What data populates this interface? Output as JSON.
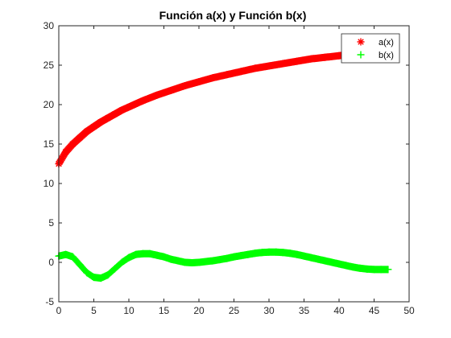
{
  "chart_data": {
    "type": "scatter",
    "title": "Función a(x) y Función b(x)",
    "xlabel": "",
    "ylabel": "",
    "xlim": [
      0,
      50
    ],
    "ylim": [
      -5,
      30
    ],
    "xticks": [
      0,
      5,
      10,
      15,
      20,
      25,
      30,
      35,
      40,
      45,
      50
    ],
    "yticks": [
      -5,
      0,
      5,
      10,
      15,
      20,
      25,
      30
    ],
    "grid": false,
    "legend": "top-right",
    "series": [
      {
        "name": "a(x)",
        "marker": "*",
        "color": "#ff0000",
        "x": [
          0,
          1,
          2,
          3,
          4,
          5,
          6,
          7,
          8,
          9,
          10,
          12,
          14,
          16,
          18,
          20,
          22,
          24,
          26,
          28,
          30,
          32,
          34,
          36,
          38,
          40,
          42
        ],
        "y": [
          12.5,
          14.0,
          15.0,
          15.8,
          16.6,
          17.2,
          17.8,
          18.3,
          18.8,
          19.3,
          19.7,
          20.5,
          21.2,
          21.8,
          22.4,
          22.9,
          23.4,
          23.8,
          24.2,
          24.6,
          24.9,
          25.2,
          25.5,
          25.8,
          26.0,
          26.2,
          26.4
        ]
      },
      {
        "name": "b(x)",
        "marker": "+",
        "color": "#00ff00",
        "x": [
          0,
          1,
          2,
          3,
          4,
          5,
          6,
          7,
          8,
          9,
          10,
          11,
          12,
          13,
          14,
          15,
          16,
          17,
          18,
          19,
          20,
          21,
          22,
          23,
          24,
          25,
          26,
          27,
          28,
          29,
          30,
          31,
          32,
          33,
          34,
          35,
          36,
          37,
          38,
          39,
          40,
          41,
          42,
          43,
          44,
          45,
          46,
          47
        ],
        "y": [
          0.8,
          1.0,
          0.7,
          -0.3,
          -1.3,
          -1.9,
          -2.0,
          -1.6,
          -0.8,
          0.0,
          0.6,
          1.0,
          1.1,
          1.1,
          0.9,
          0.7,
          0.4,
          0.2,
          0.0,
          -0.05,
          0.0,
          0.1,
          0.2,
          0.35,
          0.5,
          0.7,
          0.85,
          1.0,
          1.15,
          1.25,
          1.3,
          1.3,
          1.25,
          1.15,
          1.0,
          0.8,
          0.6,
          0.4,
          0.2,
          0.0,
          -0.2,
          -0.4,
          -0.6,
          -0.75,
          -0.85,
          -0.9,
          -0.9,
          -0.9
        ]
      }
    ]
  }
}
